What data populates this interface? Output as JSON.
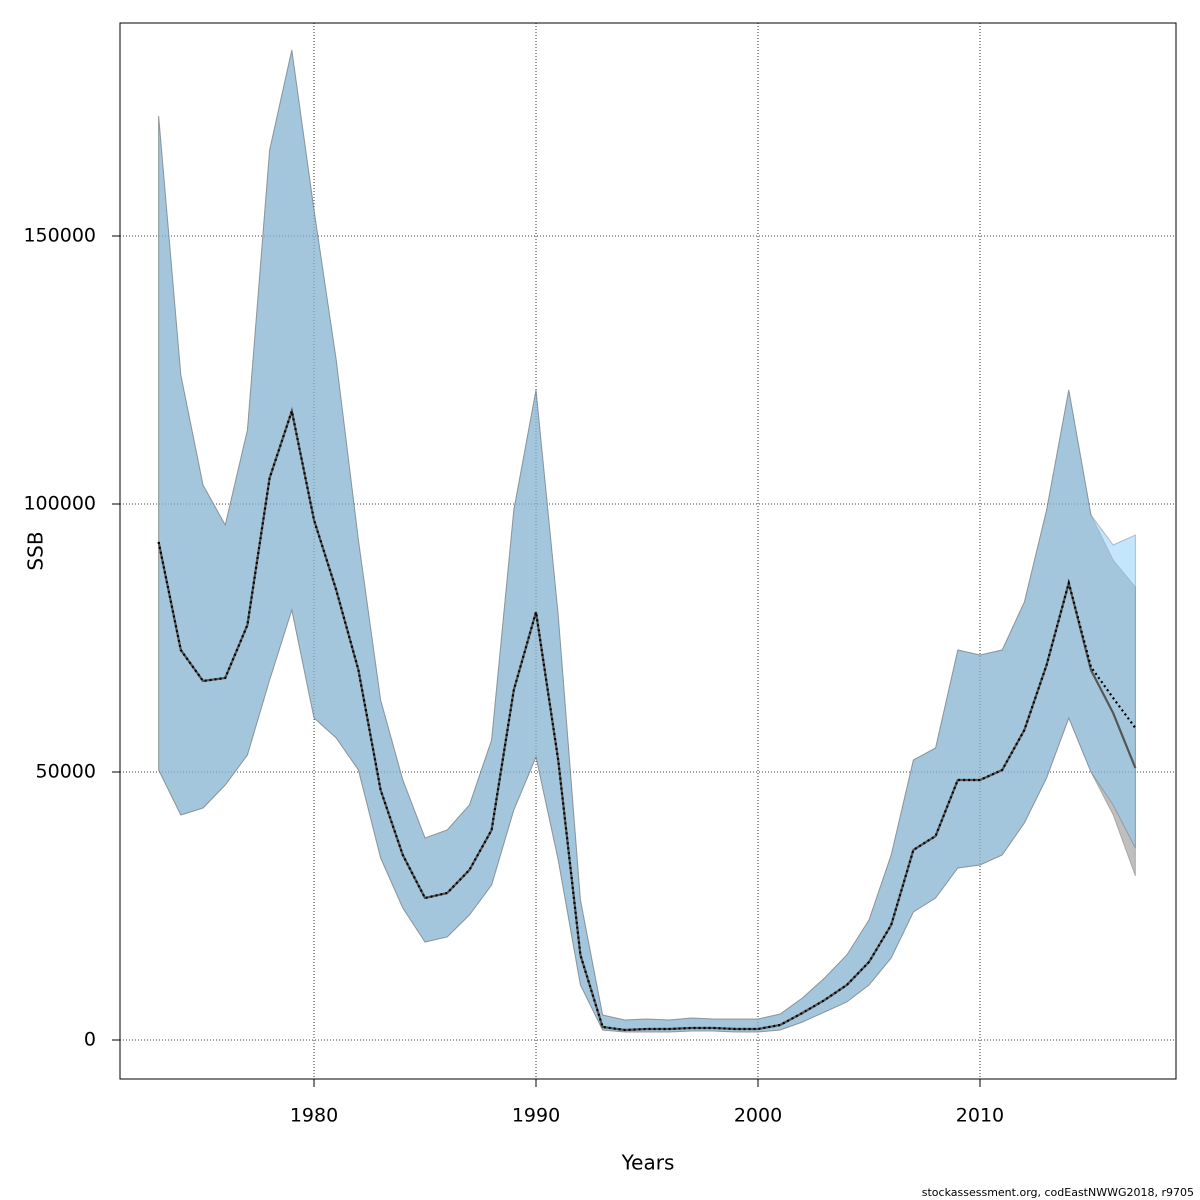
{
  "chart_data": {
    "type": "line",
    "xlabel": "Years",
    "ylabel": "SSB",
    "footnote": "stockassessment.org, codEastNWWG2018, r9705",
    "x": [
      1973,
      1974,
      1975,
      1976,
      1977,
      1978,
      1979,
      1980,
      1981,
      1982,
      1983,
      1984,
      1985,
      1986,
      1987,
      1988,
      1989,
      1990,
      1991,
      1992,
      1993,
      1994,
      1995,
      1996,
      1997,
      1998,
      1999,
      2000,
      2001,
      2002,
      2003,
      2004,
      2005,
      2006,
      2007,
      2008,
      2009,
      2010,
      2011,
      2012,
      2013,
      2014,
      2015,
      2016,
      2017
    ],
    "xlim": [
      1971.26,
      2018.83
    ],
    "xticks": [
      1980,
      1990,
      2000,
      2010
    ],
    "ylim": [
      -7276,
      189739
    ],
    "yticks": [
      0,
      50000,
      100000,
      150000
    ],
    "grid": true,
    "bands": [
      {
        "color": "rgba(128,128,128,0.5)",
        "upper": [
          172400,
          124070,
          103540,
          96080,
          113800,
          166040,
          184700,
          154850,
          126870,
          93280,
          63430,
          48510,
          37690,
          39180,
          43840,
          55970,
          98880,
          121270,
          79290,
          26120,
          4660,
          3730,
          3920,
          3730,
          4100,
          3920,
          3920,
          3920,
          4850,
          7840,
          11570,
          15860,
          22390,
          34520,
          52240,
          54480,
          72760,
          71830,
          72760,
          81720,
          98880,
          121270,
          97950,
          89550,
          84510
        ],
        "lower": [
          50370,
          41980,
          43280,
          47570,
          53170,
          67160,
          80220,
          60070,
          56340,
          50370,
          33960,
          24630,
          18280,
          19220,
          23320,
          28920,
          42910,
          52800,
          33580,
          10260,
          1870,
          1490,
          1490,
          1490,
          1680,
          1680,
          1490,
          1490,
          1870,
          3360,
          5220,
          7090,
          10260,
          15300,
          23880,
          26490,
          32090,
          32650,
          34520,
          40490,
          48880,
          60070,
          50000,
          41980,
          30600
        ]
      },
      {
        "color": "rgba(135,206,250,0.5)",
        "upper": [
          172400,
          124070,
          103540,
          96080,
          113800,
          166040,
          184700,
          154850,
          126870,
          93280,
          63430,
          48510,
          37690,
          39180,
          43840,
          55970,
          98880,
          121270,
          79290,
          26120,
          4660,
          3730,
          3920,
          3730,
          4100,
          3920,
          3920,
          3920,
          4850,
          7840,
          11570,
          15860,
          22390,
          34520,
          52240,
          54480,
          72760,
          71830,
          72760,
          81720,
          98880,
          121270,
          97950,
          92350,
          94220
        ],
        "lower": [
          50370,
          41980,
          43280,
          47570,
          53170,
          67160,
          80220,
          60070,
          56340,
          50370,
          33960,
          24630,
          18280,
          19220,
          23320,
          28920,
          42910,
          52800,
          33580,
          10260,
          1870,
          1490,
          1490,
          1490,
          1680,
          1680,
          1490,
          1490,
          1870,
          3360,
          5220,
          7090,
          10260,
          15300,
          23880,
          26490,
          32090,
          32650,
          34520,
          40490,
          48880,
          60070,
          50000,
          43840,
          35820
        ]
      }
    ],
    "series": [
      {
        "color": "#555555",
        "dash": "none",
        "values": [
          92910,
          72760,
          66980,
          67540,
          77430,
          104850,
          117350,
          97010,
          83960,
          69030,
          46640,
          34510,
          26490,
          27430,
          31720,
          39180,
          65300,
          79850,
          52240,
          15860,
          2430,
          1870,
          2050,
          2050,
          2240,
          2240,
          2050,
          2050,
          2800,
          5040,
          7460,
          10260,
          14550,
          21460,
          35450,
          38060,
          48510,
          48510,
          50370,
          57840,
          69960,
          85260,
          69000,
          61000,
          50750
        ]
      },
      {
        "color": "#000000",
        "dash": "2 3",
        "values": [
          92910,
          72760,
          66980,
          67540,
          77430,
          104850,
          117350,
          97010,
          83960,
          69030,
          46640,
          34510,
          26490,
          27430,
          31720,
          39180,
          65300,
          79850,
          52240,
          15860,
          2430,
          1870,
          2050,
          2050,
          2240,
          2240,
          2050,
          2050,
          2800,
          5040,
          7460,
          10260,
          14550,
          21460,
          35450,
          38060,
          48510,
          48510,
          50370,
          57840,
          69960,
          85260,
          69590,
          63810,
          58210
        ]
      }
    ]
  }
}
